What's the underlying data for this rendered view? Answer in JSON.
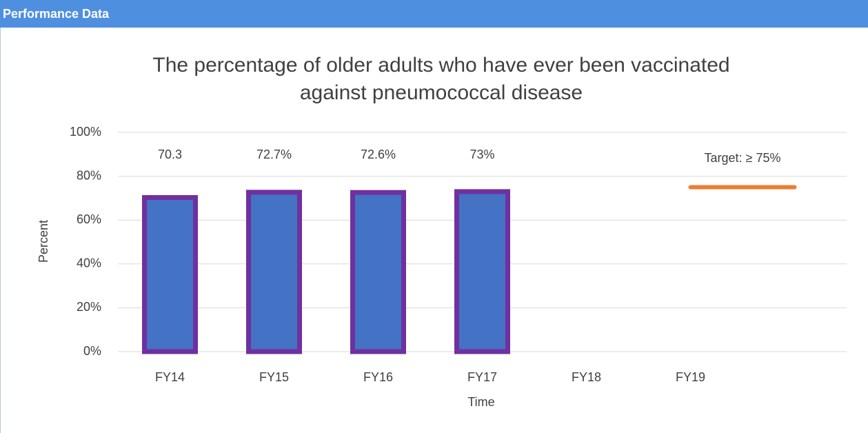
{
  "header": {
    "title": "Performance Data"
  },
  "chart_data": {
    "type": "bar",
    "title": "The percentage of older adults who have ever been vaccinated against pneumococcal disease",
    "categories": [
      "FY14",
      "FY15",
      "FY16",
      "FY17",
      "FY18",
      "FY19",
      null
    ],
    "values": [
      70.3,
      72.7,
      72.6,
      73,
      null,
      null,
      null
    ],
    "value_labels": [
      "70.3",
      "72.7%",
      "72.6%",
      "73%",
      null,
      null,
      null
    ],
    "color": "#4472c4",
    "edge_color": "#7030a0",
    "ylim": [
      0,
      100
    ],
    "yticks": [
      {
        "value": 0,
        "label": "0%"
      },
      {
        "value": 20,
        "label": "20%"
      },
      {
        "value": 40,
        "label": "40%"
      },
      {
        "value": 60,
        "label": "60%"
      },
      {
        "value": 80,
        "label": "80%"
      },
      {
        "value": 100,
        "label": "100%"
      }
    ],
    "grid": true,
    "y_label": "Percent",
    "x_label": "Time",
    "target": {
      "value": 75,
      "label": "Target: ≥ 75%",
      "color": "#ed7d31"
    }
  }
}
